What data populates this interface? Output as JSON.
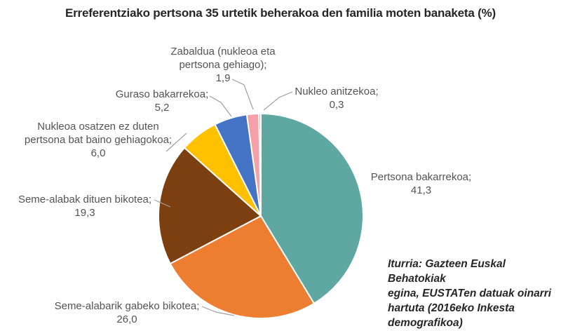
{
  "title": "Erreferentziako pertsona 35 urtetik beherakoa den familia moten banaketa (%)",
  "source_note": {
    "full": "Iturria: Gazteen Euskal Behatokiak egina, EUSTATen datuak oinarri hartuta (2016eko Inkesta demografikoa)",
    "lines": [
      "Iturria: Gazteen Euskal Behatokiak",
      "egina, EUSTATen datuak oinarri",
      "hartuta (2016eko Inkesta",
      "demografikoa)"
    ]
  },
  "colors": {
    "background": "#FFFFFF",
    "title_text": "#262626",
    "label_text": "#545454",
    "leader_line": "#A0A0A0",
    "slice_border": "#FFFFFF"
  },
  "chart_data": {
    "type": "pie",
    "title": "Erreferentziako pertsona 35 urtetik beherakoa den familia moten banaketa (%)",
    "unit": "%",
    "total": 100.0,
    "start_angle_deg_from_top": 0,
    "direction": "clockwise",
    "legend_position": "none — data labels with leader lines",
    "slices": [
      {
        "id": "pertsona-bakarrekoa",
        "label": "Pertsona bakarrekoa",
        "label_lines": [
          "Pertsona bakarrekoa;"
        ],
        "value": 41.3,
        "value_display": "41,3",
        "color": "#5FA8A2"
      },
      {
        "id": "seme-alabarik-gabeko-bikotea",
        "label": "Seme-alabarik gabeko bikotea",
        "label_lines": [
          "Seme-alabarik gabeko bikotea;"
        ],
        "value": 26.0,
        "value_display": "26,0",
        "color": "#ED7D31"
      },
      {
        "id": "seme-alabak-dituen-bikotea",
        "label": "Seme-alabak dituen bikotea",
        "label_lines": [
          "Seme-alabak dituen bikotea;"
        ],
        "value": 19.3,
        "value_display": "19,3",
        "color": "#7B3F10"
      },
      {
        "id": "nukleoa-osatzen-ez-duten",
        "label": "Nukleoa osatzen ez duten pertsona bat baino gehiagokoa",
        "label_lines": [
          "Nukleoa osatzen ez duten",
          "pertsona bat baino gehiagokoa;"
        ],
        "value": 6.0,
        "value_display": "6,0",
        "color": "#FFC000"
      },
      {
        "id": "guraso-bakarrekoa",
        "label": "Guraso bakarrekoa",
        "label_lines": [
          "Guraso bakarrekoa;"
        ],
        "value": 5.2,
        "value_display": "5,2",
        "color": "#4472C4"
      },
      {
        "id": "zabaldua",
        "label": "Zabaldua (nukleoa eta pertsona gehiago)",
        "label_lines": [
          "Zabaldua (nukleoa eta",
          "pertsona gehiago);"
        ],
        "value": 1.9,
        "value_display": "1,9",
        "color": "#F5A0A8"
      },
      {
        "id": "nukleo-anitzekoa",
        "label": "Nukleo anitzekoa",
        "label_lines": [
          "Nukleo anitzekoa;"
        ],
        "value": 0.3,
        "value_display": "0,3",
        "color": "#A6A6A6"
      }
    ]
  }
}
